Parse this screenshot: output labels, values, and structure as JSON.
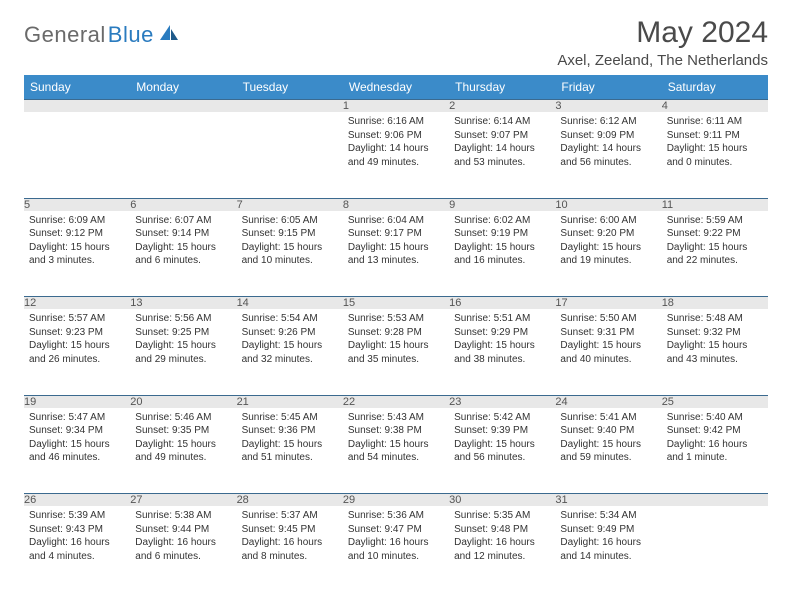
{
  "brand": {
    "general": "General",
    "blue": "Blue"
  },
  "title": "May 2024",
  "location": "Axel, Zeeland, The Netherlands",
  "colors": {
    "header_bg": "#3b8bc9",
    "header_text": "#ffffff",
    "daynum_bg": "#e8e8e8",
    "border": "#3b6a8f",
    "logo_gray": "#6a6a6a",
    "logo_blue": "#2a7bbf"
  },
  "dayNames": [
    "Sunday",
    "Monday",
    "Tuesday",
    "Wednesday",
    "Thursday",
    "Friday",
    "Saturday"
  ],
  "weeks": [
    [
      {
        "n": "",
        "lines": []
      },
      {
        "n": "",
        "lines": []
      },
      {
        "n": "",
        "lines": []
      },
      {
        "n": "1",
        "lines": [
          "Sunrise: 6:16 AM",
          "Sunset: 9:06 PM",
          "Daylight: 14 hours",
          "and 49 minutes."
        ]
      },
      {
        "n": "2",
        "lines": [
          "Sunrise: 6:14 AM",
          "Sunset: 9:07 PM",
          "Daylight: 14 hours",
          "and 53 minutes."
        ]
      },
      {
        "n": "3",
        "lines": [
          "Sunrise: 6:12 AM",
          "Sunset: 9:09 PM",
          "Daylight: 14 hours",
          "and 56 minutes."
        ]
      },
      {
        "n": "4",
        "lines": [
          "Sunrise: 6:11 AM",
          "Sunset: 9:11 PM",
          "Daylight: 15 hours",
          "and 0 minutes."
        ]
      }
    ],
    [
      {
        "n": "5",
        "lines": [
          "Sunrise: 6:09 AM",
          "Sunset: 9:12 PM",
          "Daylight: 15 hours",
          "and 3 minutes."
        ]
      },
      {
        "n": "6",
        "lines": [
          "Sunrise: 6:07 AM",
          "Sunset: 9:14 PM",
          "Daylight: 15 hours",
          "and 6 minutes."
        ]
      },
      {
        "n": "7",
        "lines": [
          "Sunrise: 6:05 AM",
          "Sunset: 9:15 PM",
          "Daylight: 15 hours",
          "and 10 minutes."
        ]
      },
      {
        "n": "8",
        "lines": [
          "Sunrise: 6:04 AM",
          "Sunset: 9:17 PM",
          "Daylight: 15 hours",
          "and 13 minutes."
        ]
      },
      {
        "n": "9",
        "lines": [
          "Sunrise: 6:02 AM",
          "Sunset: 9:19 PM",
          "Daylight: 15 hours",
          "and 16 minutes."
        ]
      },
      {
        "n": "10",
        "lines": [
          "Sunrise: 6:00 AM",
          "Sunset: 9:20 PM",
          "Daylight: 15 hours",
          "and 19 minutes."
        ]
      },
      {
        "n": "11",
        "lines": [
          "Sunrise: 5:59 AM",
          "Sunset: 9:22 PM",
          "Daylight: 15 hours",
          "and 22 minutes."
        ]
      }
    ],
    [
      {
        "n": "12",
        "lines": [
          "Sunrise: 5:57 AM",
          "Sunset: 9:23 PM",
          "Daylight: 15 hours",
          "and 26 minutes."
        ]
      },
      {
        "n": "13",
        "lines": [
          "Sunrise: 5:56 AM",
          "Sunset: 9:25 PM",
          "Daylight: 15 hours",
          "and 29 minutes."
        ]
      },
      {
        "n": "14",
        "lines": [
          "Sunrise: 5:54 AM",
          "Sunset: 9:26 PM",
          "Daylight: 15 hours",
          "and 32 minutes."
        ]
      },
      {
        "n": "15",
        "lines": [
          "Sunrise: 5:53 AM",
          "Sunset: 9:28 PM",
          "Daylight: 15 hours",
          "and 35 minutes."
        ]
      },
      {
        "n": "16",
        "lines": [
          "Sunrise: 5:51 AM",
          "Sunset: 9:29 PM",
          "Daylight: 15 hours",
          "and 38 minutes."
        ]
      },
      {
        "n": "17",
        "lines": [
          "Sunrise: 5:50 AM",
          "Sunset: 9:31 PM",
          "Daylight: 15 hours",
          "and 40 minutes."
        ]
      },
      {
        "n": "18",
        "lines": [
          "Sunrise: 5:48 AM",
          "Sunset: 9:32 PM",
          "Daylight: 15 hours",
          "and 43 minutes."
        ]
      }
    ],
    [
      {
        "n": "19",
        "lines": [
          "Sunrise: 5:47 AM",
          "Sunset: 9:34 PM",
          "Daylight: 15 hours",
          "and 46 minutes."
        ]
      },
      {
        "n": "20",
        "lines": [
          "Sunrise: 5:46 AM",
          "Sunset: 9:35 PM",
          "Daylight: 15 hours",
          "and 49 minutes."
        ]
      },
      {
        "n": "21",
        "lines": [
          "Sunrise: 5:45 AM",
          "Sunset: 9:36 PM",
          "Daylight: 15 hours",
          "and 51 minutes."
        ]
      },
      {
        "n": "22",
        "lines": [
          "Sunrise: 5:43 AM",
          "Sunset: 9:38 PM",
          "Daylight: 15 hours",
          "and 54 minutes."
        ]
      },
      {
        "n": "23",
        "lines": [
          "Sunrise: 5:42 AM",
          "Sunset: 9:39 PM",
          "Daylight: 15 hours",
          "and 56 minutes."
        ]
      },
      {
        "n": "24",
        "lines": [
          "Sunrise: 5:41 AM",
          "Sunset: 9:40 PM",
          "Daylight: 15 hours",
          "and 59 minutes."
        ]
      },
      {
        "n": "25",
        "lines": [
          "Sunrise: 5:40 AM",
          "Sunset: 9:42 PM",
          "Daylight: 16 hours",
          "and 1 minute."
        ]
      }
    ],
    [
      {
        "n": "26",
        "lines": [
          "Sunrise: 5:39 AM",
          "Sunset: 9:43 PM",
          "Daylight: 16 hours",
          "and 4 minutes."
        ]
      },
      {
        "n": "27",
        "lines": [
          "Sunrise: 5:38 AM",
          "Sunset: 9:44 PM",
          "Daylight: 16 hours",
          "and 6 minutes."
        ]
      },
      {
        "n": "28",
        "lines": [
          "Sunrise: 5:37 AM",
          "Sunset: 9:45 PM",
          "Daylight: 16 hours",
          "and 8 minutes."
        ]
      },
      {
        "n": "29",
        "lines": [
          "Sunrise: 5:36 AM",
          "Sunset: 9:47 PM",
          "Daylight: 16 hours",
          "and 10 minutes."
        ]
      },
      {
        "n": "30",
        "lines": [
          "Sunrise: 5:35 AM",
          "Sunset: 9:48 PM",
          "Daylight: 16 hours",
          "and 12 minutes."
        ]
      },
      {
        "n": "31",
        "lines": [
          "Sunrise: 5:34 AM",
          "Sunset: 9:49 PM",
          "Daylight: 16 hours",
          "and 14 minutes."
        ]
      },
      {
        "n": "",
        "lines": []
      }
    ]
  ]
}
